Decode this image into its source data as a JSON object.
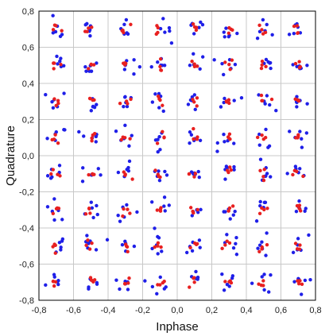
{
  "chart_data": {
    "type": "scatter",
    "title": "",
    "xlabel": "Inphase",
    "ylabel": "Quadrature",
    "xlim": [
      -0.8,
      0.8
    ],
    "ylim": [
      -0.8,
      0.8
    ],
    "xticks": [
      "-0,8",
      "-0,6",
      "-0,4",
      "-0,2",
      "0,0",
      "0,2",
      "0,4",
      "0,6",
      "0,8"
    ],
    "yticks": [
      "-0,8",
      "-0,6",
      "-0,4",
      "-0,2",
      "0,0",
      "0,2",
      "0,4",
      "0,6",
      "0,8"
    ],
    "grid": true,
    "legend": "none",
    "constellation_levels": [
      -0.7,
      -0.5,
      -0.3,
      -0.1,
      0.1,
      0.3,
      0.5,
      0.7
    ],
    "points_per_symbol": {
      "blue": 6,
      "red": 4
    },
    "spread": {
      "blue": 0.03,
      "red": 0.015
    },
    "colors": {
      "series_received": "#1f1fe8",
      "series_reference": "#e82020",
      "grid": "#c8c8c8",
      "axis": "#000000"
    },
    "series": [
      {
        "color_key": "series_received",
        "values": "64 clusters of blue points around each constellation symbol (x, y) in levels × levels"
      },
      {
        "color_key": "series_reference",
        "values": "64 clusters of red points around each constellation symbol (x, y) in levels × levels"
      }
    ]
  }
}
